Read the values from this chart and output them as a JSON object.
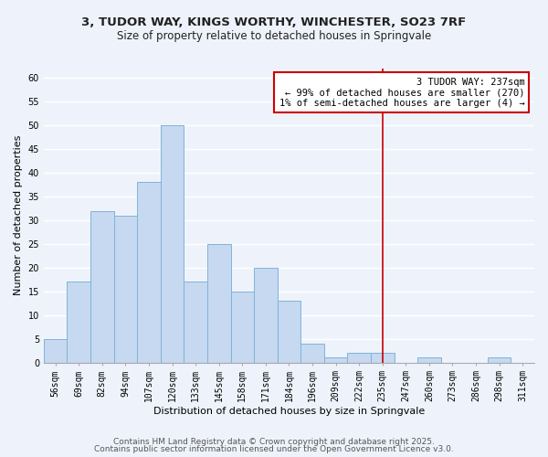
{
  "title_line1": "3, TUDOR WAY, KINGS WORTHY, WINCHESTER, SO23 7RF",
  "title_line2": "Size of property relative to detached houses in Springvale",
  "xlabel": "Distribution of detached houses by size in Springvale",
  "ylabel": "Number of detached properties",
  "bar_labels": [
    "56sqm",
    "69sqm",
    "82sqm",
    "94sqm",
    "107sqm",
    "120sqm",
    "133sqm",
    "145sqm",
    "158sqm",
    "171sqm",
    "184sqm",
    "196sqm",
    "209sqm",
    "222sqm",
    "235sqm",
    "247sqm",
    "260sqm",
    "273sqm",
    "286sqm",
    "298sqm",
    "311sqm"
  ],
  "bar_heights": [
    5,
    17,
    32,
    31,
    38,
    50,
    17,
    25,
    15,
    20,
    13,
    4,
    1,
    2,
    2,
    0,
    1,
    0,
    0,
    1,
    0
  ],
  "bar_color": "#c6d9f0",
  "bar_edge_color": "#7fb3d9",
  "background_color": "#eef3fb",
  "grid_color": "#ffffff",
  "vline_x_index": 14,
  "vline_color": "#cc0000",
  "annotation_title": "3 TUDOR WAY: 237sqm",
  "annotation_line2": "← 99% of detached houses are smaller (270)",
  "annotation_line3": "1% of semi-detached houses are larger (4) →",
  "annotation_box_color": "#cc0000",
  "annotation_bg": "#ffffff",
  "ylim": [
    0,
    62
  ],
  "yticks": [
    0,
    5,
    10,
    15,
    20,
    25,
    30,
    35,
    40,
    45,
    50,
    55,
    60
  ],
  "footnote1": "Contains HM Land Registry data © Crown copyright and database right 2025.",
  "footnote2": "Contains public sector information licensed under the Open Government Licence v3.0.",
  "title_fontsize": 9.5,
  "subtitle_fontsize": 8.5,
  "axis_label_fontsize": 8,
  "tick_fontsize": 7,
  "annotation_fontsize": 7.5,
  "footnote_fontsize": 6.5
}
